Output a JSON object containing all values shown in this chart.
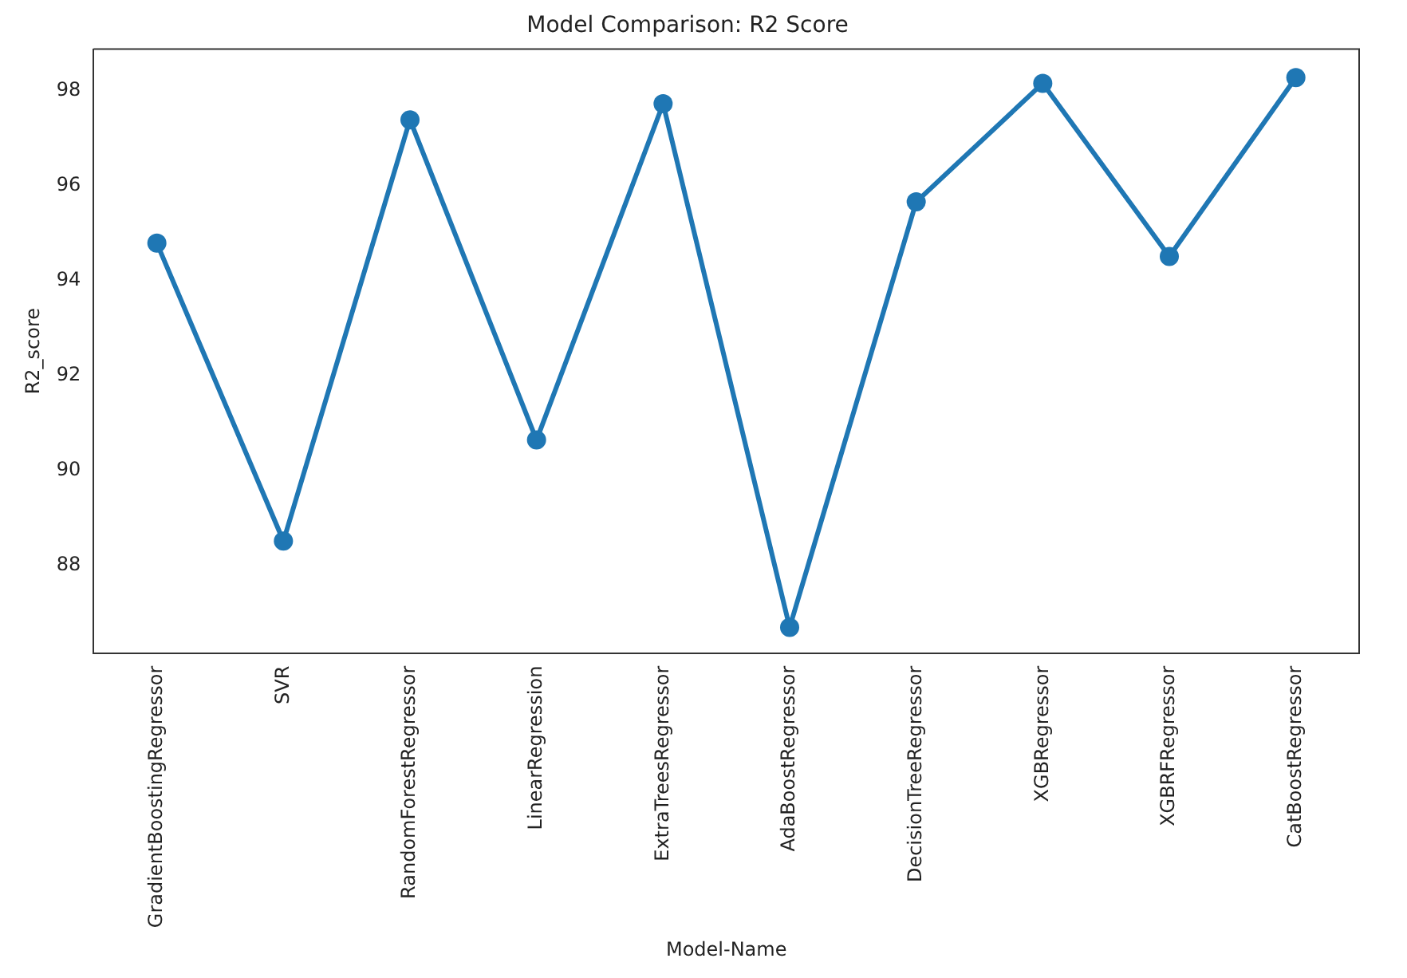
{
  "chart_data": {
    "type": "line",
    "title": "Model Comparison: R2 Score",
    "xlabel": "Model-Name",
    "ylabel": "R2_score",
    "categories": [
      "GradientBoostingRegressor",
      "SVR",
      "RandomForestRegressor",
      "LinearRegression",
      "ExtraTreesRegressor",
      "AdaBoostRegressor",
      "DecisionTreeRegressor",
      "XGBRegressor",
      "XGBRFRegressor",
      "CatBoostRegressor"
    ],
    "series": [
      {
        "color": "#1f77b4",
        "values": [
          94.79,
          88.51,
          97.39,
          90.64,
          97.73,
          86.69,
          95.66,
          98.16,
          94.51,
          98.28
        ]
      }
    ],
    "ylim": [
      86.15,
      98.88
    ],
    "yticks": [
      88,
      90,
      92,
      94,
      96,
      98
    ],
    "grid": false,
    "legend": false,
    "marker": "circle",
    "line_style": "solid"
  }
}
